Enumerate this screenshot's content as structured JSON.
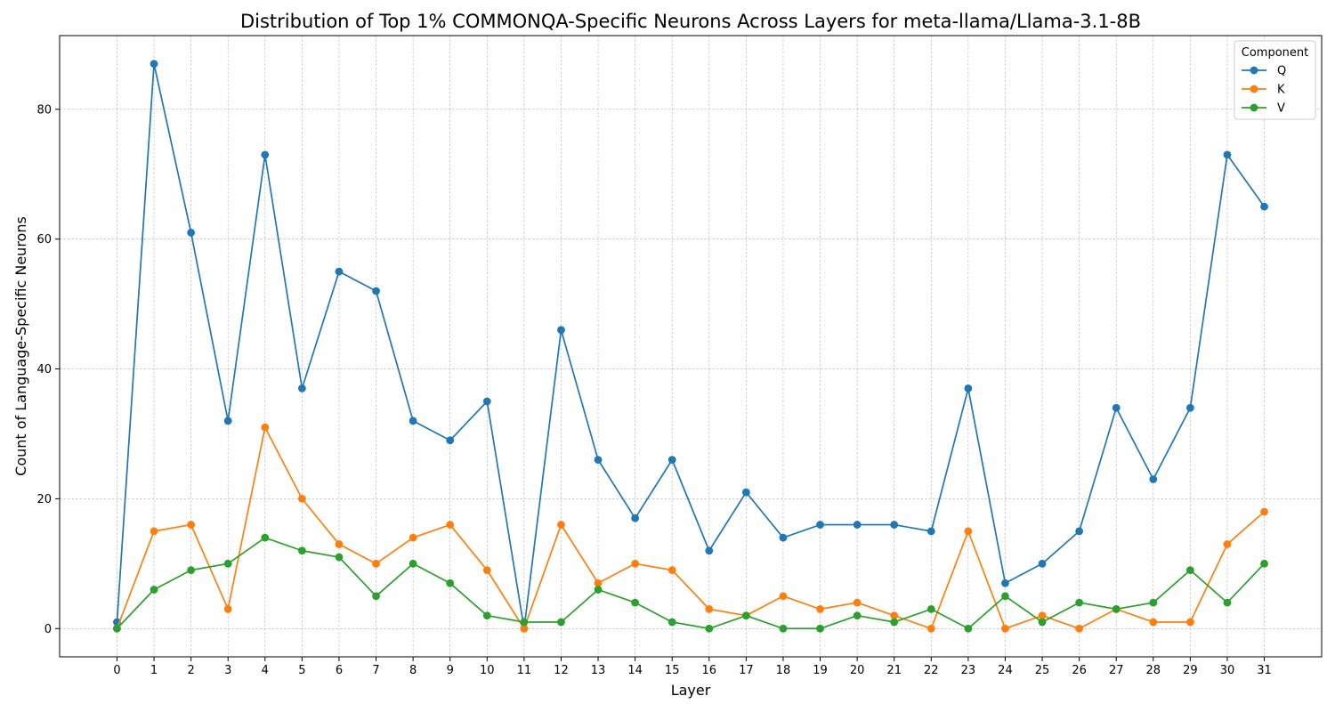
{
  "chart_data": {
    "type": "line",
    "title": "Distribution of Top 1% COMMONQA-Specific Neurons Across Layers for meta-llama/Llama-3.1-8B",
    "xlabel": "Layer",
    "ylabel": "Count of Language-Specific Neurons",
    "x": [
      0,
      1,
      2,
      3,
      4,
      5,
      6,
      7,
      8,
      9,
      10,
      11,
      12,
      13,
      14,
      15,
      16,
      17,
      18,
      19,
      20,
      21,
      22,
      23,
      24,
      25,
      26,
      27,
      28,
      29,
      30,
      31
    ],
    "xlim": [
      -1.55,
      32.55
    ],
    "ylim": [
      -4.35,
      91.35
    ],
    "yticks": [
      0,
      20,
      40,
      60,
      80
    ],
    "grid": true,
    "legend": {
      "title": "Component",
      "placement": "top-right"
    },
    "series": [
      {
        "name": "Q",
        "color": "#1f77b4",
        "values": [
          1,
          87,
          61,
          32,
          73,
          37,
          55,
          52,
          32,
          29,
          35,
          0,
          46,
          26,
          17,
          26,
          12,
          21,
          14,
          16,
          16,
          16,
          15,
          37,
          7,
          10,
          15,
          34,
          23,
          34,
          73,
          65
        ]
      },
      {
        "name": "K",
        "color": "#ff7f0e",
        "values": [
          0,
          15,
          16,
          3,
          31,
          20,
          13,
          10,
          14,
          16,
          9,
          0,
          16,
          7,
          10,
          9,
          3,
          2,
          5,
          3,
          4,
          2,
          0,
          15,
          0,
          2,
          0,
          3,
          1,
          1,
          13,
          18
        ]
      },
      {
        "name": "V",
        "color": "#2ca02c",
        "values": [
          0,
          6,
          9,
          10,
          14,
          12,
          11,
          5,
          10,
          7,
          2,
          1,
          1,
          6,
          4,
          1,
          0,
          2,
          0,
          0,
          2,
          1,
          3,
          0,
          5,
          1,
          4,
          3,
          4,
          9,
          4,
          10
        ]
      }
    ]
  }
}
